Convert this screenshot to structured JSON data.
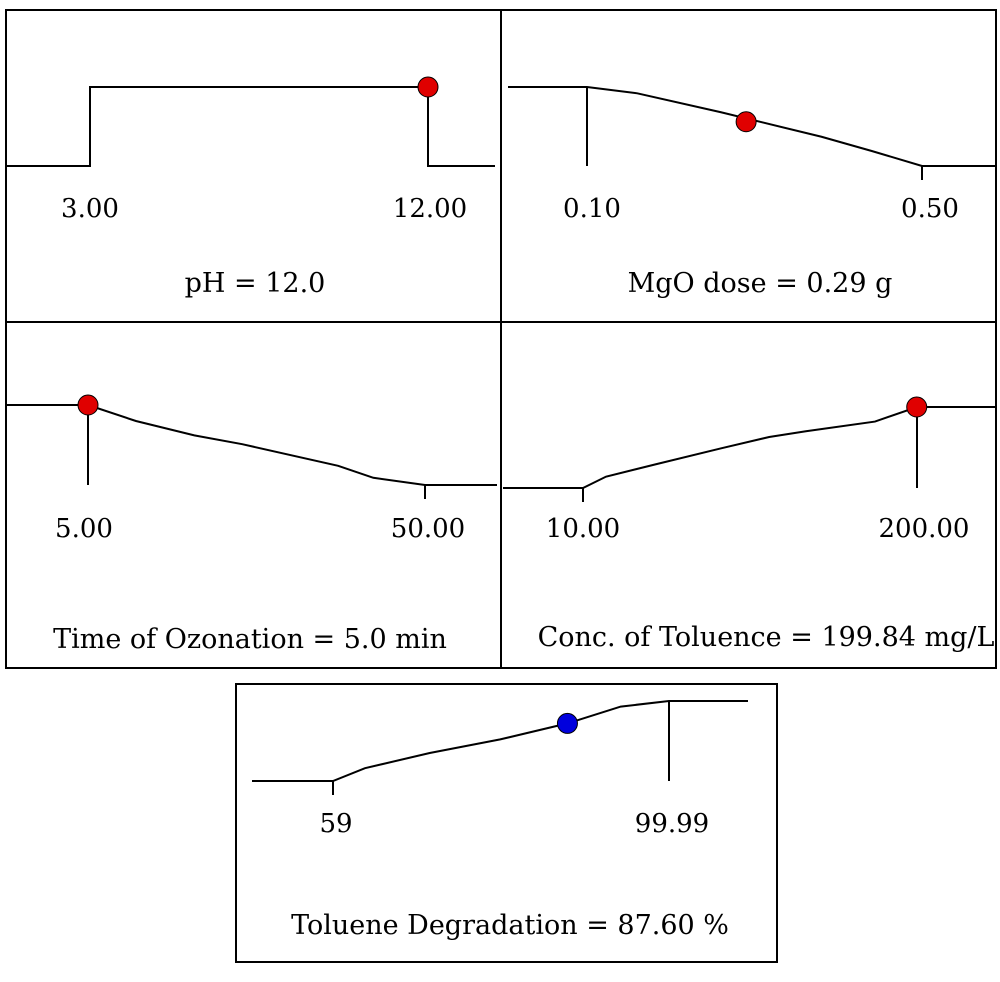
{
  "chart_data": [
    {
      "type": "line",
      "min_label": "3.00",
      "max_label": "12.00",
      "caption": "pH = 12.0",
      "marker_color": "#e00000",
      "curve": [
        [
          3.0,
          0
        ],
        [
          3.0,
          1
        ],
        [
          12.0,
          1
        ],
        [
          12.0,
          0
        ]
      ],
      "setting": [
        12.0,
        1
      ]
    },
    {
      "type": "line",
      "min_label": "0.10",
      "max_label": "0.50",
      "caption": "MgO dose = 0.29 g",
      "marker_color": "#e00000",
      "curve": [
        [
          0.1,
          1
        ],
        [
          0.16,
          0.92
        ],
        [
          0.26,
          0.68
        ],
        [
          0.38,
          0.37
        ],
        [
          0.44,
          0.19
        ],
        [
          0.5,
          0
        ]
      ],
      "setting": [
        0.29,
        0.56
      ]
    },
    {
      "type": "line",
      "min_label": "5.00",
      "max_label": "50.00",
      "caption": "Time of Ozonation = 5.0 min",
      "marker_color": "#e00000",
      "curve": [
        [
          5.0,
          1
        ],
        [
          11.4,
          0.8
        ],
        [
          19.2,
          0.62
        ],
        [
          25.6,
          0.51
        ],
        [
          38.4,
          0.24
        ],
        [
          43.1,
          0.09
        ],
        [
          50.0,
          0
        ]
      ],
      "setting": [
        5.0,
        1
      ]
    },
    {
      "type": "line",
      "min_label": "10.00",
      "max_label": "200.00",
      "caption": "Conc. of Toluence = 199.84 mg/L",
      "marker_color": "#e00000",
      "curve": [
        [
          10.0,
          0
        ],
        [
          23.1,
          0.14
        ],
        [
          50.9,
          0.29
        ],
        [
          88.6,
          0.49
        ],
        [
          115.9,
          0.63
        ],
        [
          136.8,
          0.7
        ],
        [
          176.1,
          0.82
        ],
        [
          200.0,
          1
        ]
      ],
      "setting": [
        199.84,
        1
      ]
    },
    {
      "type": "line",
      "min_label": "59",
      "max_label": "99.99",
      "caption": "Toluene Degradation = 87.60 %",
      "marker_color": "#0000dd",
      "curve": [
        [
          59.0,
          0
        ],
        [
          62.9,
          0.16
        ],
        [
          70.8,
          0.35
        ],
        [
          79.4,
          0.52
        ],
        [
          87.6,
          0.72
        ],
        [
          94.1,
          0.93
        ],
        [
          99.99,
          1
        ]
      ],
      "setting": [
        87.6,
        0.72
      ]
    }
  ]
}
